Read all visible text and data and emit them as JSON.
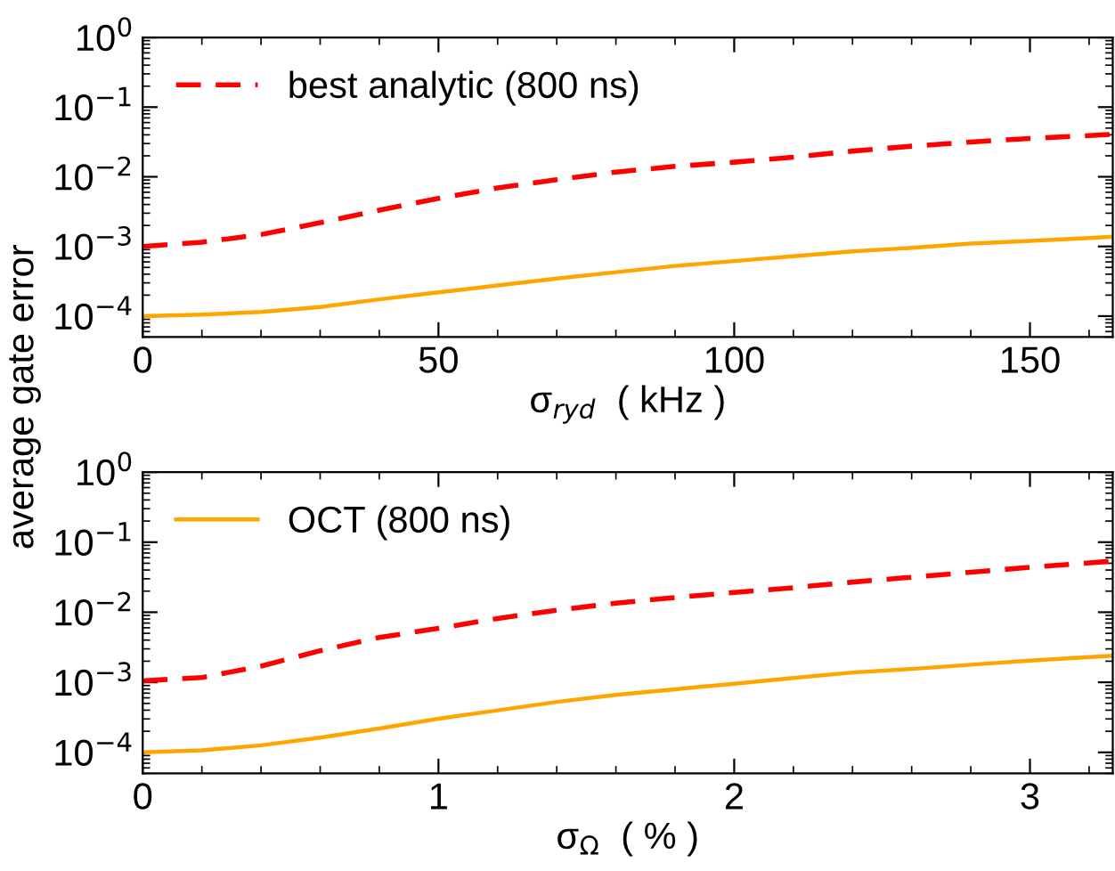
{
  "chart_data": [
    {
      "type": "line",
      "xlabel": "σ$_{ryd}$  ( kHz )",
      "ylabel": "average gate error",
      "log": "y",
      "xlim": [
        0,
        164
      ],
      "xticks": [
        0,
        50,
        100,
        150
      ],
      "ylim": [
        5e-05,
        1
      ],
      "yticks": [
        {
          "value": 1,
          "label": "10$^{0}$"
        },
        {
          "value": 0.1,
          "label": "10$^{−1}$"
        },
        {
          "value": 0.01,
          "label": "10$^{−2}$"
        },
        {
          "value": 0.001,
          "label": "10$^{−3}$"
        },
        {
          "value": 0.0001,
          "label": "10$^{−4}$"
        }
      ],
      "legend": "top left",
      "grid": false,
      "x": [
        0,
        10,
        20,
        30,
        40,
        50,
        60,
        70,
        80,
        90,
        100,
        110,
        120,
        130,
        140,
        150,
        160,
        164
      ],
      "series": [
        {
          "name": "best analytic (800 ns)",
          "color": "#ff0000",
          "line_style": "dashed",
          "values": [
            0.001,
            0.00115,
            0.00148,
            0.00219,
            0.00331,
            0.0049,
            0.00692,
            0.00912,
            0.0117,
            0.0141,
            0.0162,
            0.0191,
            0.0234,
            0.0275,
            0.0316,
            0.0355,
            0.0389,
            0.0407
          ]
        },
        {
          "color": "#ffa500",
          "line_style": "solid",
          "values": [
            0.0001,
            0.000105,
            0.000115,
            0.000135,
            0.000174,
            0.000219,
            0.000275,
            0.000347,
            0.000427,
            0.000525,
            0.000617,
            0.000724,
            0.000851,
            0.000955,
            0.0011,
            0.0012,
            0.00132,
            0.00138
          ]
        }
      ]
    },
    {
      "type": "line",
      "xlabel": "σ$_{Ω}$  ( % )",
      "log": "y",
      "xlim": [
        0,
        3.28
      ],
      "xticks": [
        0,
        1,
        2,
        3
      ],
      "ylim": [
        5e-05,
        1
      ],
      "yticks": [
        {
          "value": 1,
          "label": "10$^{0}$"
        },
        {
          "value": 0.1,
          "label": "10$^{−1}$"
        },
        {
          "value": 0.01,
          "label": "10$^{−2}$"
        },
        {
          "value": 0.001,
          "label": "10$^{−3}$"
        },
        {
          "value": 0.0001,
          "label": "10$^{−4}$"
        }
      ],
      "legend": "top left",
      "grid": false,
      "x": [
        0,
        0.2,
        0.4,
        0.6,
        0.8,
        1.0,
        1.2,
        1.4,
        1.6,
        1.8,
        2.0,
        2.2,
        2.4,
        2.6,
        2.8,
        3.0,
        3.28
      ],
      "series": [
        {
          "color": "#ff0000",
          "line_style": "dashed",
          "values": [
            0.00105,
            0.00117,
            0.0017,
            0.00282,
            0.00437,
            0.00589,
            0.00813,
            0.0107,
            0.0135,
            0.0162,
            0.0191,
            0.0224,
            0.0269,
            0.0316,
            0.0372,
            0.0437,
            0.0537
          ]
        },
        {
          "name": "OCT (800 ns)",
          "color": "#ffa500",
          "line_style": "solid",
          "values": [
            0.0001,
            0.000107,
            0.000126,
            0.000162,
            0.000219,
            0.000302,
            0.000398,
            0.000525,
            0.000661,
            0.000794,
            0.000955,
            0.00115,
            0.00138,
            0.00155,
            0.00178,
            0.00204,
            0.0024
          ]
        }
      ]
    }
  ]
}
